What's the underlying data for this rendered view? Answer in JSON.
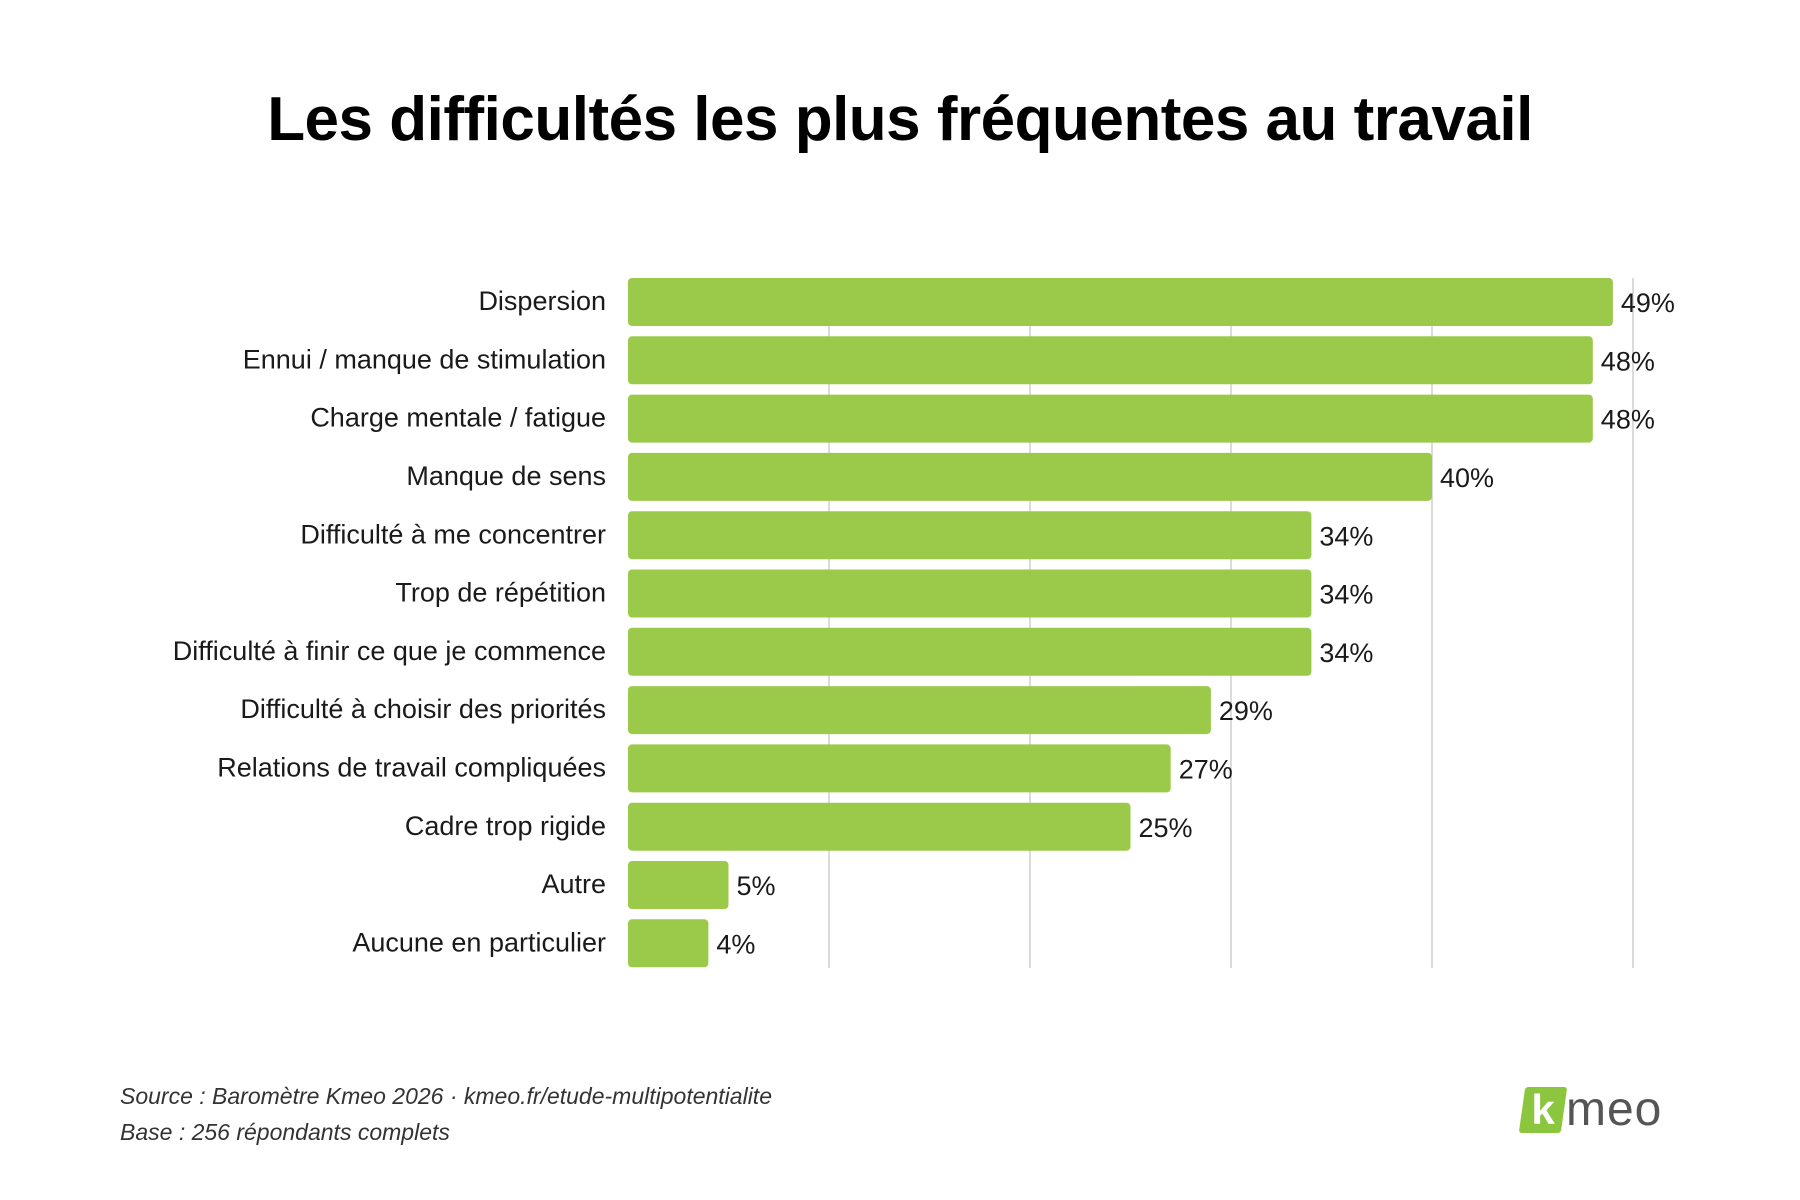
{
  "title": "Les difficultés les plus fréquentes au travail",
  "colors": {
    "bar": "#9bca4b",
    "grid": "#cfcfcf",
    "logo": "#8cc63f"
  },
  "chart_data": {
    "type": "bar",
    "orientation": "horizontal",
    "title": "Les difficultés les plus fréquentes au travail",
    "categories": [
      "Dispersion",
      "Ennui / manque de stimulation",
      "Charge mentale / fatigue",
      "Manque de sens",
      "Difficulté à me concentrer",
      "Trop de répétition",
      "Difficulté à finir ce que je commence",
      "Difficulté à choisir des priorités",
      "Relations de travail compliquées",
      "Cadre trop rigide",
      "Autre",
      "Aucune en particulier"
    ],
    "values": [
      49,
      48,
      48,
      40,
      34,
      34,
      34,
      29,
      27,
      25,
      5,
      4
    ],
    "value_labels": [
      "49%",
      "48%",
      "48%",
      "40%",
      "34%",
      "34%",
      "34%",
      "29%",
      "27%",
      "25%",
      "5%",
      "4%"
    ],
    "xlim": [
      0,
      50
    ],
    "grid": true
  },
  "footer": {
    "source": "Source : Baromètre Kmeo 2026 · kmeo.fr/etude-multipotentialite",
    "base": "Base : 256 répondants complets"
  },
  "logo": {
    "mark": "k",
    "text": "meo"
  }
}
